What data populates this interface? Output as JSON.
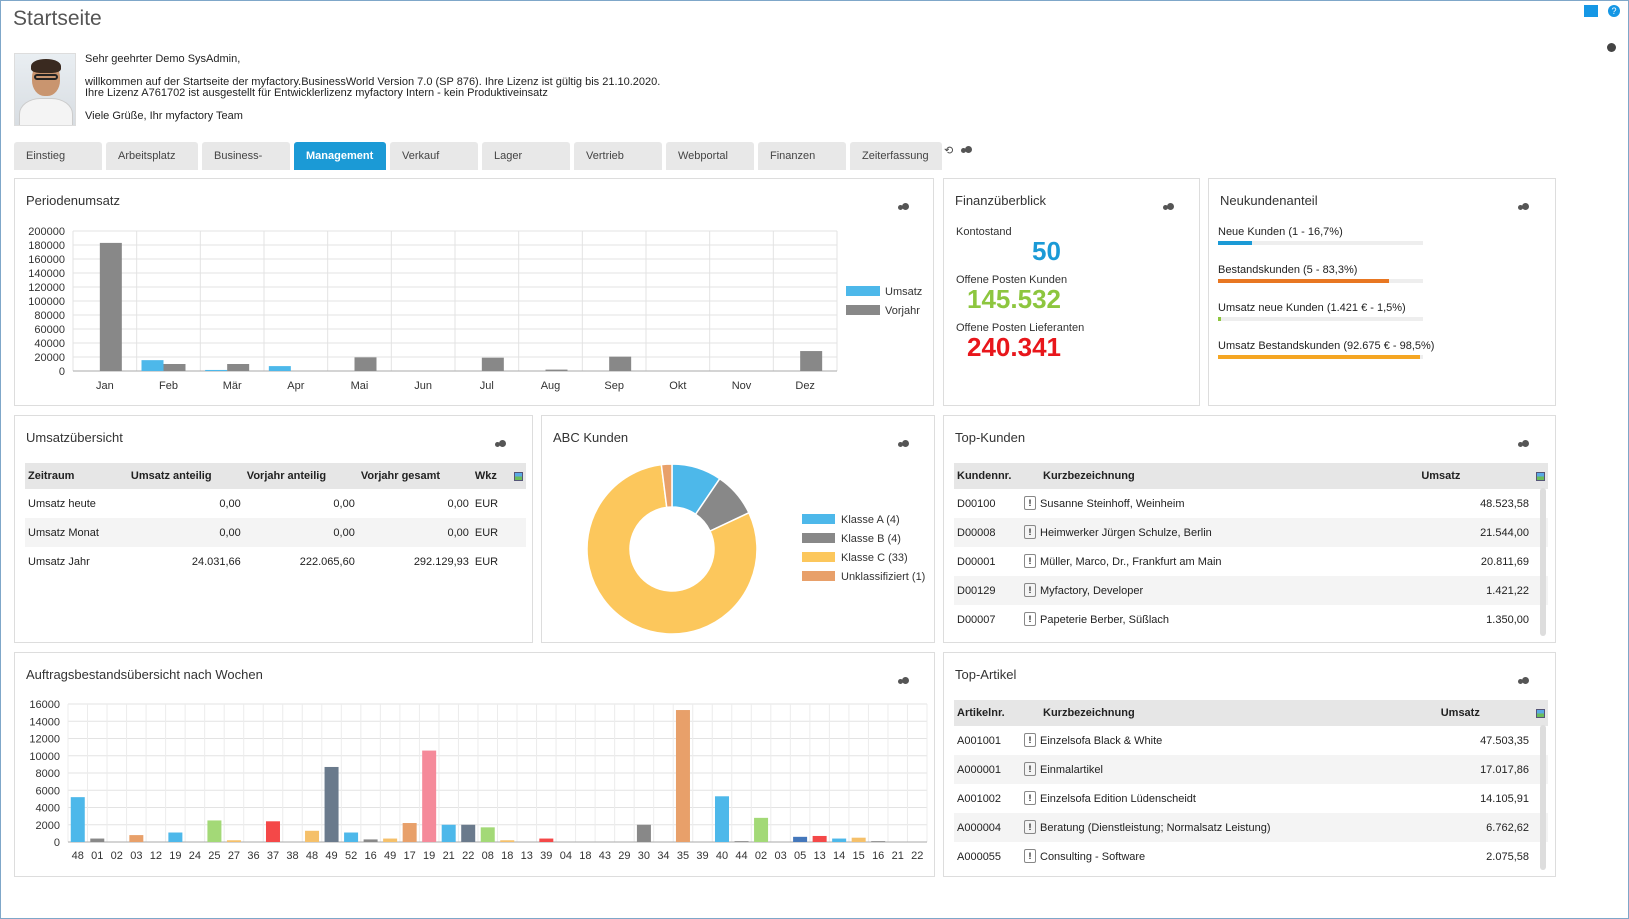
{
  "title": "Startseite",
  "welcome": {
    "greeting": "Sehr geehrter Demo SysAdmin,",
    "line1": "willkommen auf der Startseite der myfactory.BusinessWorld Version 7.0 (SP 876). Ihre Lizenz ist gültig bis 21.10.2020.",
    "line2": "Ihre Lizenz A761702 ist ausgestellt für Entwicklerlizenz myfactory Intern - kein Produktiveinsatz",
    "sign": "Viele Grüße, Ihr myfactory Team"
  },
  "tabs": [
    "Einstieg",
    "Arbeitsplatz",
    "Business-Info",
    "Management",
    "Verkauf",
    "Lager",
    "Vertrieb",
    "Webportal",
    "Finanzen",
    "Zeiterfassung"
  ],
  "active_tab": "Management",
  "colors": {
    "accent": "#1b9ad6",
    "umsatz": "#4db8ea",
    "vorjahr": "#888888",
    "green": "#8dc63f",
    "red": "#e8161b",
    "orange": "#e87722",
    "yellow": "#f5a623"
  },
  "periodenumsatz": {
    "title": "Periodenumsatz",
    "chart_data": {
      "type": "bar",
      "categories": [
        "Jan",
        "Feb",
        "Mär",
        "Apr",
        "Mai",
        "Jun",
        "Jul",
        "Aug",
        "Sep",
        "Okt",
        "Nov",
        "Dez"
      ],
      "series": [
        {
          "name": "Umsatz",
          "values": [
            0,
            15500,
            1500,
            7000,
            0,
            0,
            0,
            0,
            0,
            0,
            0,
            0
          ]
        },
        {
          "name": "Vorjahr",
          "values": [
            183000,
            10000,
            10000,
            0,
            19500,
            0,
            19000,
            2000,
            20500,
            0,
            0,
            28500
          ]
        }
      ],
      "yticks": [
        0,
        20000,
        40000,
        60000,
        80000,
        100000,
        120000,
        140000,
        160000,
        180000,
        200000
      ],
      "ylim": [
        0,
        200000
      ],
      "grid": true,
      "legend": "right"
    }
  },
  "finanz": {
    "title": "Finanzüberblick",
    "konto_label": "Kontostand",
    "konto_value": "50",
    "op_kunden_label": "Offene Posten Kunden",
    "op_kunden_value": "145.532",
    "op_lief_label": "Offene Posten Lieferanten",
    "op_lief_value": "240.341"
  },
  "neukunden": {
    "title": "Neukundenanteil",
    "items": [
      {
        "label": "Neue Kunden (1 - 16,7%)",
        "fraction": 0.167,
        "color": "#1b9ad6"
      },
      {
        "label": "Bestandskunden (5 - 83,3%)",
        "fraction": 0.833,
        "color": "#e87722"
      },
      {
        "label": "Umsatz neue Kunden (1.421 € - 1,5%)",
        "fraction": 0.015,
        "color": "#8dc63f"
      },
      {
        "label": "Umsatz Bestandskunden (92.675 € - 98,5%)",
        "fraction": 0.985,
        "color": "#f5a623"
      }
    ]
  },
  "umsatz": {
    "title": "Umsatzübersicht",
    "headers": [
      "Zeitraum",
      "Umsatz anteilig",
      "Vorjahr anteilig",
      "Vorjahr gesamt",
      "Wkz"
    ],
    "rows": [
      [
        "Umsatz heute",
        "0,00",
        "0,00",
        "0,00",
        "EUR"
      ],
      [
        "Umsatz Monat",
        "0,00",
        "0,00",
        "0,00",
        "EUR"
      ],
      [
        "Umsatz Jahr",
        "24.031,66",
        "222.065,60",
        "292.129,93",
        "EUR"
      ]
    ]
  },
  "abc": {
    "title": "ABC Kunden",
    "chart_data": {
      "type": "pie",
      "slices": [
        {
          "label": "Klasse A (4)",
          "value": 9.5,
          "color": "#4db8ea"
        },
        {
          "label": "Klasse B (4)",
          "value": 8.5,
          "color": "#888888"
        },
        {
          "label": "Klasse C (33)",
          "value": 80,
          "color": "#fcc75c"
        },
        {
          "label": "Unklassifiziert (1)",
          "value": 2,
          "color": "#e8a06a"
        }
      ],
      "legend": "right"
    }
  },
  "topkunden": {
    "title": "Top-Kunden",
    "headers": [
      "Kundennr.",
      "Kurzbezeichnung",
      "Umsatz"
    ],
    "rows": [
      [
        "D00100",
        "Susanne Steinhoff, Weinheim",
        "48.523,58"
      ],
      [
        "D00008",
        "Heimwerker Jürgen Schulze, Berlin",
        "21.544,00"
      ],
      [
        "D00001",
        "Müller, Marco, Dr., Frankfurt am Main",
        "20.811,69"
      ],
      [
        "D00129",
        "Myfactory, Developer",
        "1.421,22"
      ],
      [
        "D00007",
        "Papeterie Berber, Süßlach",
        "1.350,00"
      ]
    ]
  },
  "auftrag": {
    "title": "Auftragsbestandsübersicht nach Wochen",
    "chart_data": {
      "type": "bar",
      "categories": [
        "48",
        "01",
        "02",
        "03",
        "12",
        "19",
        "24",
        "25",
        "27",
        "36",
        "37",
        "38",
        "48",
        "49",
        "52",
        "16",
        "49",
        "17",
        "19",
        "21",
        "22",
        "08",
        "18",
        "13",
        "39",
        "04",
        "18",
        "43",
        "29",
        "30",
        "34",
        "35",
        "39",
        "40",
        "44",
        "02",
        "03",
        "05",
        "13",
        "14",
        "15",
        "16",
        "21",
        "22"
      ],
      "values": [
        5200,
        400,
        0,
        800,
        0,
        1100,
        0,
        2500,
        200,
        0,
        2400,
        0,
        1300,
        8700,
        1100,
        300,
        400,
        2200,
        10600,
        2000,
        2000,
        1700,
        200,
        0,
        400,
        0,
        0,
        0,
        0,
        2000,
        0,
        15300,
        0,
        5300,
        100,
        2800,
        0,
        600,
        700,
        400,
        500,
        100,
        0,
        0
      ],
      "colors": [
        "#4db8ea",
        "#888888",
        "#888888",
        "#e8a06a",
        "#4db8ea",
        "#4db8ea",
        "#4db8ea",
        "#a3d977",
        "#f5c06a",
        "#888888",
        "#f44848",
        "#888888",
        "#f5c06a",
        "#6a7a8c",
        "#4db8ea",
        "#888888",
        "#f5c06a",
        "#e8a06a",
        "#f58a9a",
        "#4db8ea",
        "#6a7a8c",
        "#a3d977",
        "#f5c06a",
        "#888888",
        "#f44848",
        "#888888",
        "#888888",
        "#888888",
        "#888888",
        "#888888",
        "#888888",
        "#e8a06a",
        "#888888",
        "#4db8ea",
        "#888888",
        "#a3d977",
        "#888888",
        "#4477bb",
        "#f44848",
        "#4db8ea",
        "#f5c06a",
        "#888888",
        "#888888",
        "#888888"
      ],
      "yticks": [
        0,
        2000,
        4000,
        6000,
        8000,
        10000,
        12000,
        14000,
        16000
      ],
      "ylim": [
        0,
        16000
      ],
      "grid": true
    }
  },
  "topartikel": {
    "title": "Top-Artikel",
    "headers": [
      "Artikelnr.",
      "Kurzbezeichnung",
      "Umsatz"
    ],
    "rows": [
      [
        "A001001",
        "Einzelsofa Black & White",
        "47.503,35"
      ],
      [
        "A000001",
        "Einmalartikel",
        "17.017,86"
      ],
      [
        "A001002",
        "Einzelsofa Edition Lüdenscheidt",
        "14.105,91"
      ],
      [
        "A000004",
        "Beratung (Dienstleistung; Normalsatz Leistung)",
        "6.762,62"
      ],
      [
        "A000055",
        "Consulting - Software",
        "2.075,58"
      ]
    ]
  }
}
